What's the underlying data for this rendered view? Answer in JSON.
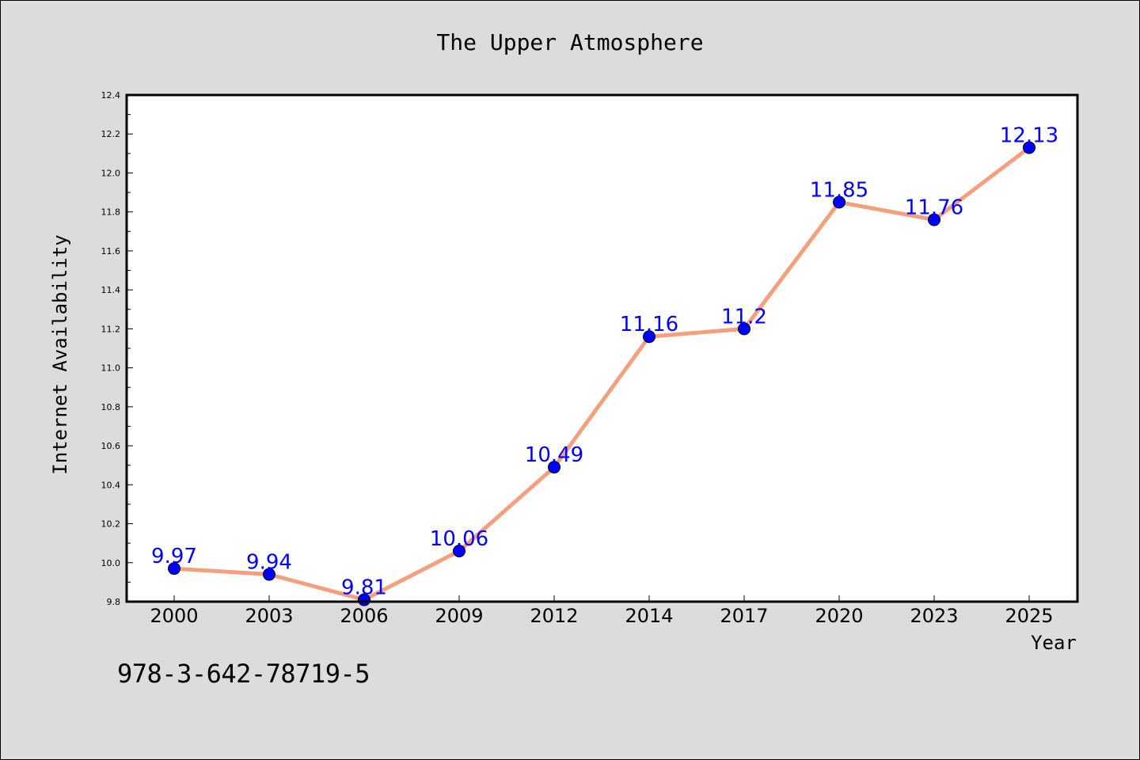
{
  "chart_data": {
    "type": "line",
    "title": "The Upper Atmosphere",
    "xlabel": "Year",
    "ylabel": "Internet Availability",
    "categories": [
      "2000",
      "2003",
      "2006",
      "2009",
      "2012",
      "2014",
      "2017",
      "2020",
      "2023",
      "2025"
    ],
    "series": [
      {
        "values": [
          9.97,
          9.94,
          9.81,
          10.06,
          10.49,
          11.16,
          11.2,
          11.85,
          11.76,
          12.13
        ],
        "data_labels": [
          "9.97",
          "9.94",
          "9.81",
          "10.06",
          "10.49",
          "11.16",
          "11.2",
          "11.85",
          "11.76",
          "12.13"
        ]
      }
    ],
    "ylim": [
      9.8,
      12.4
    ],
    "yticks": [
      "9.8",
      "10.0",
      "10.2",
      "10.4",
      "10.6",
      "10.8",
      "11.0",
      "11.2",
      "11.4",
      "11.6",
      "11.8",
      "12.0",
      "12.2",
      "12.4"
    ],
    "grid": false,
    "colors": {
      "line": "#f4a07e",
      "marker": "#0000ff",
      "label": "#0000ff",
      "background": "#dcdcdc",
      "plot_background": "#ffffff"
    }
  },
  "footer": {
    "isbn": "978-3-642-78719-5"
  }
}
